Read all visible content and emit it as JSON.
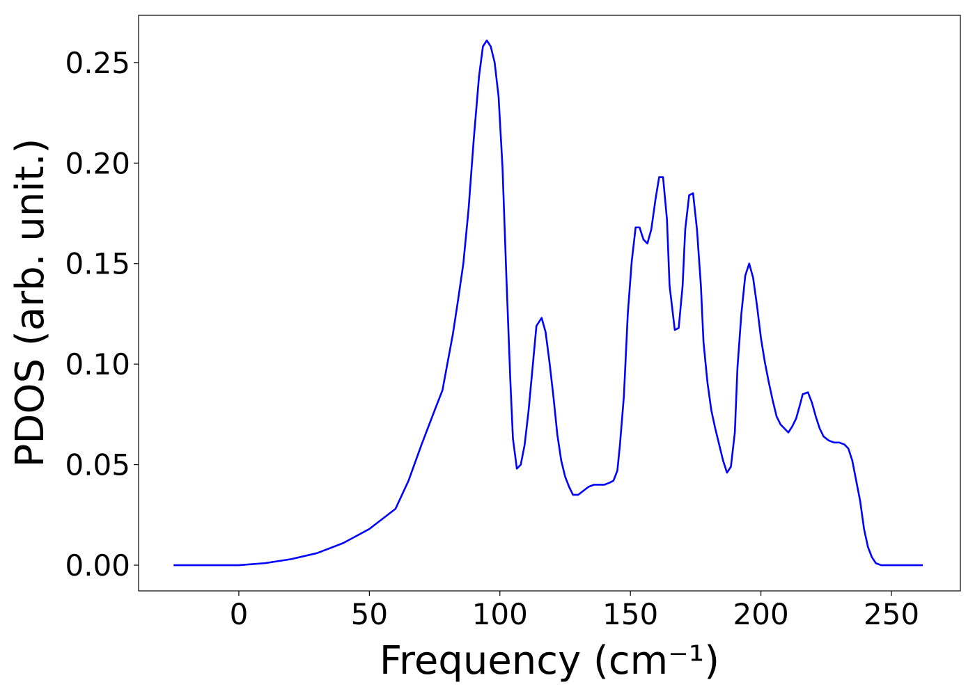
{
  "chart_data": {
    "type": "line",
    "xlabel": "Frequency (cm⁻¹)",
    "ylabel": "PDOS (arb. unit.)",
    "xlim": [
      -38.4,
      276.4
    ],
    "ylim": [
      -0.0128,
      0.2735
    ],
    "xticks": [
      0,
      50,
      100,
      150,
      200,
      250
    ],
    "yticks": [
      {
        "value": 0,
        "label": "0.00"
      },
      {
        "value": 0.05,
        "label": "0.05"
      },
      {
        "value": 0.1,
        "label": "0.10"
      },
      {
        "value": 0.15,
        "label": "0.15"
      },
      {
        "value": 0.2,
        "label": "0.20"
      },
      {
        "value": 0.25,
        "label": "0.25"
      }
    ],
    "x": [
      -25,
      0,
      10,
      20,
      30,
      40,
      50,
      60,
      65,
      70,
      75,
      78,
      80,
      82,
      84,
      86,
      88,
      90,
      92,
      93.5,
      95,
      96.5,
      98,
      99.5,
      101,
      102.5,
      104,
      105,
      106.5,
      108,
      109.5,
      111,
      112.5,
      114,
      116,
      117.5,
      119,
      120.5,
      122,
      123.5,
      125,
      126.5,
      128,
      130,
      132,
      134,
      136,
      140,
      142,
      143.5,
      145,
      146,
      147.5,
      149,
      150.5,
      152,
      153.5,
      155,
      156.5,
      158,
      159.5,
      161,
      162.5,
      164,
      165,
      167,
      168.5,
      170,
      171,
      172.5,
      174,
      175.5,
      177,
      178,
      179.5,
      181,
      182.5,
      184,
      185.5,
      187,
      188.5,
      190,
      191,
      192.5,
      194,
      195.5,
      197,
      198.5,
      200,
      201.5,
      203,
      204.5,
      206,
      207.5,
      209,
      210.5,
      212,
      213.5,
      215,
      216,
      218,
      219.5,
      221,
      222.5,
      224,
      226,
      228,
      230,
      232,
      233.5,
      235,
      236.5,
      238,
      239.5,
      241,
      242.5,
      244,
      246,
      262
    ],
    "series": [
      {
        "color": "#0000ff",
        "values": [
          0,
          0,
          0.001,
          0.003,
          0.006,
          0.011,
          0.018,
          0.028,
          0.042,
          0.06,
          0.077,
          0.087,
          0.101,
          0.115,
          0.132,
          0.15,
          0.177,
          0.212,
          0.243,
          0.258,
          0.261,
          0.258,
          0.25,
          0.233,
          0.198,
          0.143,
          0.092,
          0.063,
          0.048,
          0.05,
          0.06,
          0.077,
          0.098,
          0.119,
          0.123,
          0.116,
          0.101,
          0.084,
          0.065,
          0.052,
          0.044,
          0.039,
          0.035,
          0.035,
          0.037,
          0.039,
          0.04,
          0.04,
          0.041,
          0.042,
          0.047,
          0.06,
          0.084,
          0.125,
          0.151,
          0.168,
          0.168,
          0.162,
          0.16,
          0.167,
          0.181,
          0.193,
          0.193,
          0.172,
          0.139,
          0.117,
          0.118,
          0.139,
          0.167,
          0.184,
          0.185,
          0.167,
          0.139,
          0.111,
          0.091,
          0.077,
          0.068,
          0.06,
          0.052,
          0.046,
          0.049,
          0.066,
          0.098,
          0.125,
          0.144,
          0.15,
          0.143,
          0.129,
          0.113,
          0.101,
          0.091,
          0.082,
          0.074,
          0.07,
          0.068,
          0.066,
          0.069,
          0.073,
          0.08,
          0.085,
          0.086,
          0.081,
          0.074,
          0.068,
          0.064,
          0.062,
          0.061,
          0.061,
          0.06,
          0.058,
          0.052,
          0.042,
          0.032,
          0.018,
          0.009,
          0.004,
          0.001,
          0,
          0
        ]
      }
    ]
  }
}
